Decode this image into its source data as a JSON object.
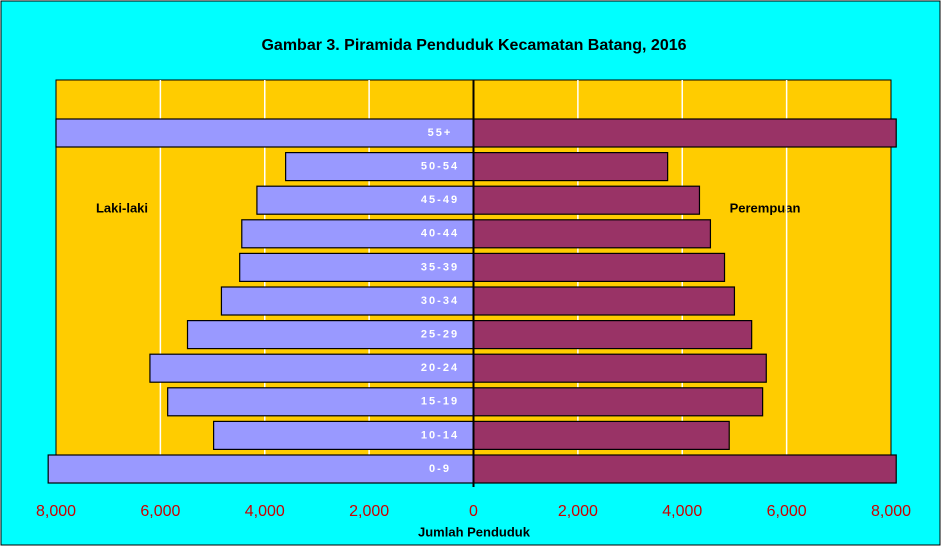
{
  "chart_data": {
    "type": "pyramid",
    "title": "Gambar 3. Piramida Penduduk Kecamatan Batang, 2016",
    "xlabel": "Jumlah Penduduk",
    "categories": [
      "55+",
      "50-54",
      "45-49",
      "40-44",
      "35-39",
      "30-34",
      "25-29",
      "20-24",
      "15-19",
      "10-14",
      "0-9"
    ],
    "series": [
      {
        "name": "Laki-laki",
        "color": "#9999ff",
        "values": [
          -8000,
          -3600,
          -4150,
          -4440,
          -4480,
          -4830,
          -5480,
          -6200,
          -5860,
          -4980,
          -8150
        ]
      },
      {
        "name": "Perempuan",
        "color": "#993366",
        "values": [
          8100,
          3720,
          4330,
          4540,
          4810,
          5000,
          5330,
          5610,
          5540,
          4900,
          8100
        ]
      }
    ],
    "xlim": [
      -8000,
      8000
    ],
    "xticks": [
      {
        "value": -8000,
        "label": "8,000"
      },
      {
        "value": -6000,
        "label": "6,000"
      },
      {
        "value": -4000,
        "label": "4,000"
      },
      {
        "value": -2000,
        "label": "2,000"
      },
      0,
      {
        "value": 2000,
        "label": "2,000"
      },
      {
        "value": 4000,
        "label": "4,000"
      },
      {
        "value": 6000,
        "label": "6,000"
      },
      {
        "value": 8000,
        "label": "8,000"
      }
    ],
    "grid": true
  }
}
